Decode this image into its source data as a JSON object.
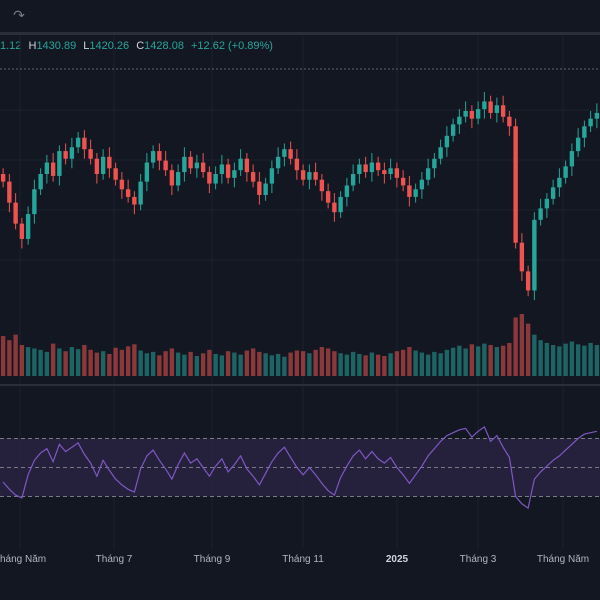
{
  "toolbar": {
    "redo_icon": "redo-icon"
  },
  "legend": {
    "open_value": "1.12",
    "high_label": "H",
    "high_value": "1430.89",
    "low_label": "L",
    "low_value": "1420.26",
    "close_label": "C",
    "close_value": "1428.08",
    "change": "+12.62 (+0.89%)"
  },
  "colors": {
    "background": "#131722",
    "up": "#26a69a",
    "down": "#ef5350",
    "rsi_line": "#7e57c2",
    "rsi_band": "#2a2444",
    "grid": "#1e222d"
  },
  "chart_data": {
    "type": "candlestick",
    "price_series": [
      1392,
      1381,
      1370,
      1362,
      1375,
      1388,
      1396,
      1402,
      1395,
      1408,
      1404,
      1410,
      1415,
      1409,
      1404,
      1396,
      1405,
      1399,
      1393,
      1388,
      1384,
      1380,
      1392,
      1402,
      1408,
      1403,
      1398,
      1390,
      1397,
      1405,
      1399,
      1402,
      1397,
      1391,
      1396,
      1401,
      1394,
      1398,
      1404,
      1397,
      1392,
      1385,
      1391,
      1399,
      1405,
      1409,
      1404,
      1398,
      1393,
      1397,
      1393,
      1387,
      1381,
      1376,
      1384,
      1390,
      1396,
      1401,
      1397,
      1402,
      1398,
      1396,
      1399,
      1394,
      1390,
      1384,
      1388,
      1393,
      1399,
      1404,
      1410,
      1416,
      1422,
      1426,
      1429,
      1425,
      1430,
      1434,
      1428,
      1432,
      1426,
      1421,
      1360,
      1345,
      1335,
      1372,
      1378,
      1383,
      1389,
      1394,
      1400,
      1408,
      1415,
      1421,
      1425,
      1428
    ],
    "volume_series": [
      58,
      52,
      60,
      45,
      42,
      40,
      38,
      35,
      47,
      40,
      36,
      42,
      39,
      45,
      38,
      34,
      36,
      32,
      41,
      38,
      43,
      46,
      37,
      33,
      35,
      30,
      36,
      40,
      34,
      31,
      35,
      29,
      33,
      38,
      32,
      30,
      36,
      34,
      31,
      37,
      40,
      35,
      33,
      30,
      32,
      28,
      34,
      37,
      36,
      33,
      38,
      42,
      40,
      36,
      33,
      31,
      35,
      32,
      30,
      34,
      31,
      29,
      33,
      36,
      38,
      42,
      37,
      34,
      31,
      35,
      33,
      38,
      41,
      44,
      40,
      46,
      43,
      47,
      45,
      42,
      44,
      48,
      85,
      90,
      76,
      60,
      52,
      48,
      45,
      43,
      47,
      50,
      46,
      44,
      48,
      45
    ],
    "rsi_series": [
      40,
      35,
      31,
      29,
      45,
      55,
      60,
      63,
      54,
      66,
      61,
      64,
      67,
      59,
      53,
      44,
      55,
      48,
      42,
      38,
      35,
      33,
      49,
      58,
      62,
      55,
      49,
      42,
      52,
      60,
      53,
      56,
      50,
      44,
      51,
      56,
      47,
      52,
      58,
      49,
      44,
      38,
      46,
      54,
      60,
      64,
      57,
      50,
      45,
      50,
      45,
      39,
      34,
      31,
      43,
      51,
      58,
      62,
      56,
      61,
      56,
      53,
      57,
      50,
      45,
      39,
      45,
      51,
      58,
      63,
      68,
      72,
      74,
      76,
      77,
      71,
      75,
      78,
      68,
      72,
      64,
      57,
      30,
      25,
      22,
      42,
      47,
      51,
      55,
      58,
      62,
      66,
      70,
      73,
      74,
      75
    ],
    "rsi_levels": [
      70,
      50,
      30
    ],
    "x_tick_labels": [
      "Tháng Năm",
      "Tháng 7",
      "Tháng 9",
      "Tháng 11",
      "2025",
      "Tháng 3",
      "Tháng Năm"
    ],
    "x_tick_bold": [
      false,
      false,
      false,
      false,
      true,
      false,
      false
    ],
    "ylim_price": [
      1330,
      1440
    ]
  }
}
